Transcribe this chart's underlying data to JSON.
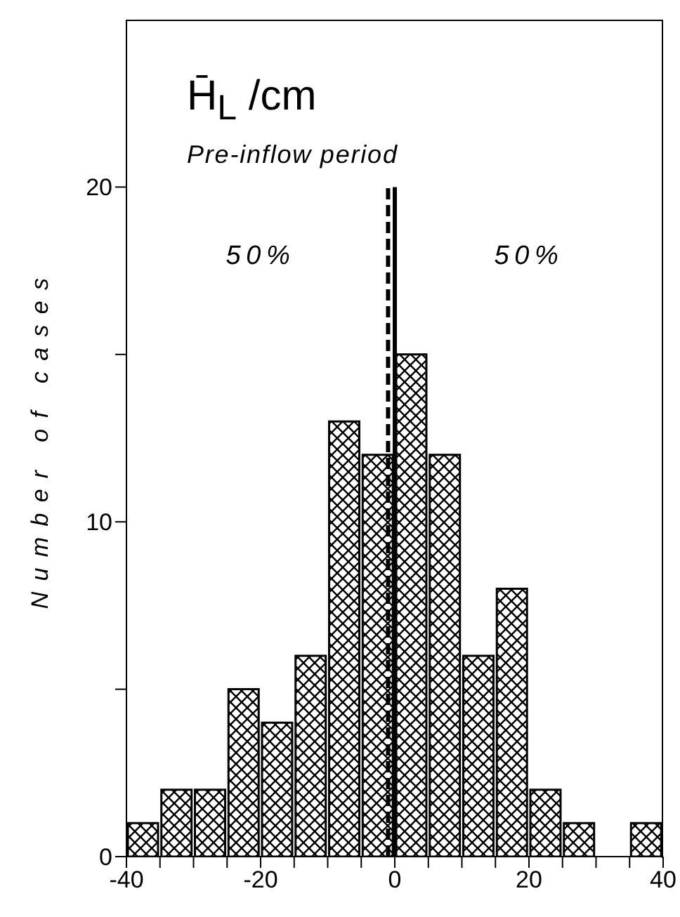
{
  "chart_data": {
    "type": "histogram",
    "title": "H̄$_{L}$ /cm",
    "subtitle": "Pre-inflow period",
    "ylabel": "Number of cases",
    "bins": [
      -40,
      -35,
      -30,
      -25,
      -20,
      -15,
      -10,
      -5,
      0,
      5,
      10,
      15,
      20,
      25,
      30,
      35,
      40
    ],
    "values": [
      1,
      2,
      2,
      5,
      4,
      6,
      13,
      12,
      15,
      12,
      6,
      8,
      2,
      1,
      0,
      1
    ],
    "color": "#000000",
    "xlim": [
      -40,
      40
    ],
    "xticks": [
      -40,
      {
        "value": -35,
        "label": null
      },
      {
        "value": -30,
        "label": null
      },
      {
        "value": -25,
        "label": null
      },
      -20,
      {
        "value": -15,
        "label": null
      },
      {
        "value": -10,
        "label": null
      },
      {
        "value": -5,
        "label": null
      },
      0,
      {
        "value": 5,
        "label": null
      },
      {
        "value": 10,
        "label": null
      },
      {
        "value": 15,
        "label": null
      },
      20,
      {
        "value": 25,
        "label": null
      },
      {
        "value": 30,
        "label": null
      },
      {
        "value": 35,
        "label": null
      },
      40
    ],
    "ylim": [
      0,
      25
    ],
    "yticks": [
      0,
      {
        "value": 5,
        "label": null
      },
      10,
      {
        "value": 15,
        "label": null
      },
      20
    ],
    "ref_lines": [
      {
        "axis": "x",
        "value": -1,
        "line_style": "dashed",
        "color": "#000000"
      },
      {
        "axis": "x",
        "value": 0,
        "line_style": "solid",
        "color": "#000000"
      }
    ],
    "annotations": [
      "50%",
      "50%"
    ]
  }
}
